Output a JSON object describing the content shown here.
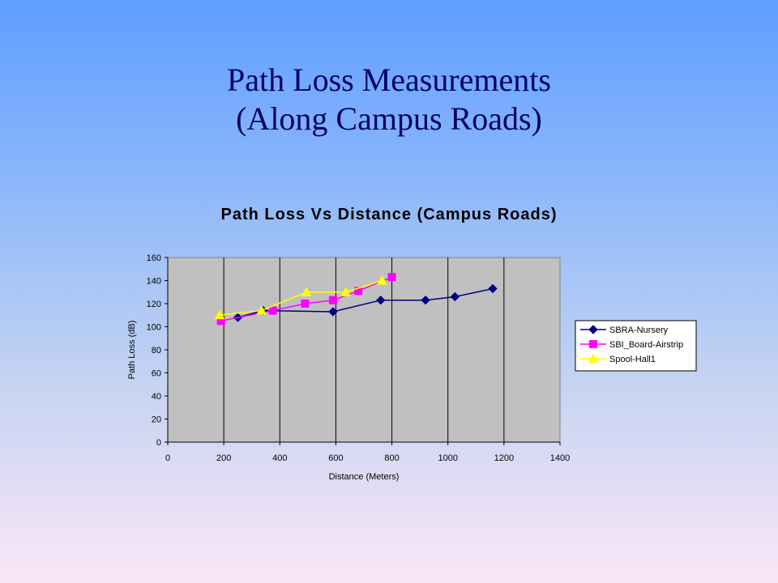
{
  "slide": {
    "title_line1": "Path Loss Measurements",
    "title_line2": "(Along Campus Roads)"
  },
  "chart_data": {
    "type": "line",
    "title": "Path Loss Vs Distance (Campus Roads)",
    "xlabel": "Distance (Meters)",
    "ylabel": "Path Loss (dB)",
    "xlim": [
      0,
      1400
    ],
    "ylim": [
      0,
      160
    ],
    "xticks": [
      0,
      200,
      400,
      600,
      800,
      1000,
      1200,
      1400
    ],
    "yticks": [
      0,
      20,
      40,
      60,
      80,
      100,
      120,
      140,
      160
    ],
    "grid": "vertical",
    "plot_background": "#c0c0c0",
    "legend_position": "right",
    "series": [
      {
        "name": "SBRA-Nursery",
        "color": "#000080",
        "marker": "diamond",
        "x": [
          250,
          340,
          590,
          760,
          920,
          1025,
          1160
        ],
        "y": [
          108,
          114,
          113,
          123,
          123,
          126,
          133
        ]
      },
      {
        "name": "SBI_Board-Airstrip",
        "color": "#ff00ff",
        "marker": "square",
        "x": [
          190,
          375,
          490,
          590,
          680,
          800
        ],
        "y": [
          105,
          114,
          120,
          123,
          131,
          143
        ]
      },
      {
        "name": "Spool-Hall1",
        "color": "#ffff00",
        "marker": "triangle",
        "x": [
          185,
          335,
          495,
          635,
          765
        ],
        "y": [
          110,
          114,
          130,
          130,
          140
        ]
      }
    ]
  }
}
